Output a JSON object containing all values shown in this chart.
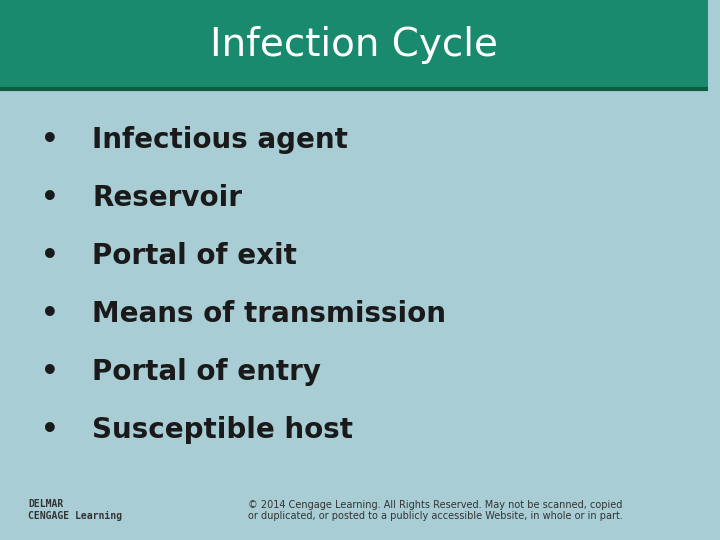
{
  "title": "Infection Cycle",
  "title_bg_color": "#1a8a6e",
  "title_text_color": "#ffffff",
  "title_fontsize": 28,
  "body_bg_color": "#a8cdd4",
  "bullet_items": [
    "Infectious agent",
    "Reservoir",
    "Portal of exit",
    "Means of transmission",
    "Portal of entry",
    "Susceptible host"
  ],
  "bullet_color": "#1a1a1a",
  "bullet_fontsize": 20,
  "footer_text": "© 2014 Cengage Learning. All Rights Reserved. May not be scanned, copied\nor duplicated, or posted to a publicly accessible Website, in whole or in part.",
  "footer_fontsize": 7,
  "footer_color": "#333333",
  "logo_text": "DELMAR\nCENGAGE Learning",
  "logo_fontsize": 7,
  "logo_color": "#333333",
  "title_bar_height": 0.165,
  "bottom_bar_height": 0.13,
  "divider_color": "#0d5c40"
}
